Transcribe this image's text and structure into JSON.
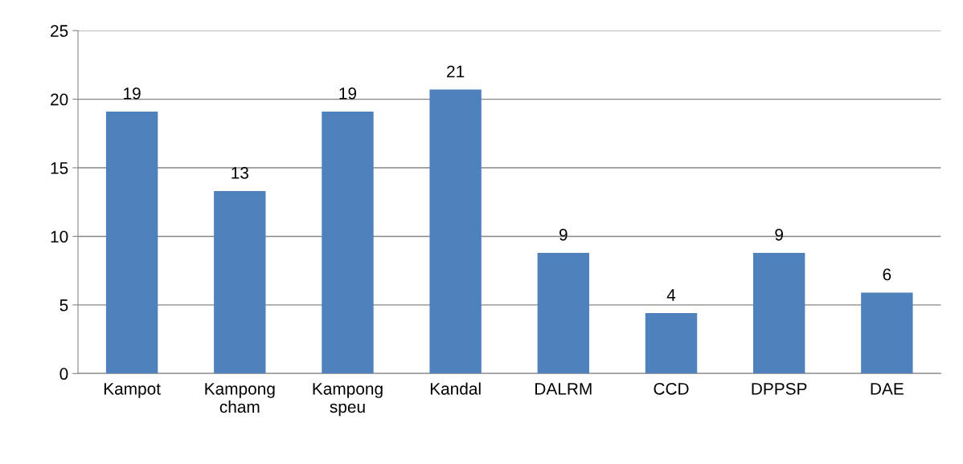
{
  "chart_data": {
    "type": "bar",
    "categories": [
      "Kampot",
      "Kampong cham",
      "Kampong speu",
      "Kandal",
      "DALRM",
      "CCD",
      "DPPSP",
      "DAE"
    ],
    "values": [
      19.1,
      13.3,
      19.1,
      20.7,
      8.8,
      4.4,
      8.8,
      5.9
    ],
    "value_labels": [
      "19",
      "13",
      "19",
      "21",
      "9",
      "4",
      "9",
      "6"
    ],
    "color": "#4f81bd",
    "ylim": [
      0,
      25
    ],
    "yticks": [
      0,
      5,
      10,
      15,
      20,
      25
    ],
    "grid": "y"
  }
}
